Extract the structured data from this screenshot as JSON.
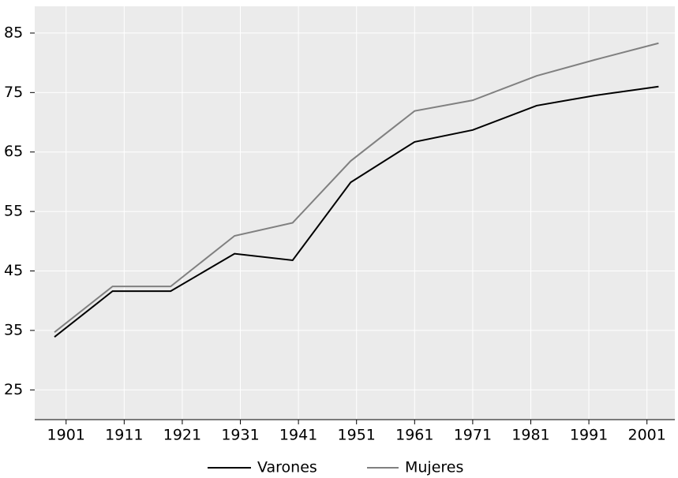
{
  "chart_data": {
    "type": "line",
    "x": [
      1899,
      1909,
      1919,
      1930,
      1940,
      1950,
      1961,
      1971,
      1982,
      1992,
      2003
    ],
    "series": [
      {
        "name": "Varones",
        "color": "#000000",
        "values": [
          33.9,
          41.6,
          41.6,
          47.9,
          46.8,
          59.9,
          66.7,
          68.7,
          72.8,
          74.5,
          76.0
        ]
      },
      {
        "name": "Mujeres",
        "color": "#808080",
        "values": [
          34.7,
          42.4,
          42.4,
          50.9,
          53.1,
          63.5,
          71.9,
          73.7,
          77.8,
          80.5,
          83.3
        ]
      }
    ],
    "xlim": [
      1895.6,
      2005.8
    ],
    "xticks": [
      1901,
      1911,
      1921,
      1931,
      1941,
      1951,
      1961,
      1971,
      1981,
      1991,
      2001
    ],
    "ylim": [
      20,
      89.5
    ],
    "yticks": [
      25,
      35,
      45,
      55,
      65,
      75,
      85
    ],
    "grid": true,
    "legend": "bottom"
  }
}
